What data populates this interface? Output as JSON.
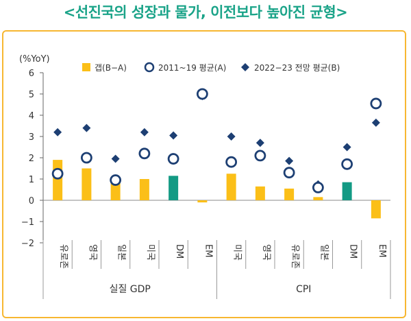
{
  "title": "<선진국의 성장과 물가, 이전보다 높아진 균형>",
  "chart_data": {
    "type": "bar",
    "ylabel": "(%YoY)",
    "ylim": [
      -2,
      6
    ],
    "yticks": [
      "6",
      "5",
      "4",
      "3",
      "2",
      "1",
      "0",
      "−1",
      "−2"
    ],
    "categories": [
      "유로존",
      "영국",
      "일본",
      "미국",
      "DM",
      "EM",
      "미국",
      "영국",
      "유로존",
      "일본",
      "DM",
      "EM"
    ],
    "groups": [
      {
        "label": "실질 GDP",
        "count": 6
      },
      {
        "label": "CPI",
        "count": 6
      }
    ],
    "legend": [
      "갭(B−A)",
      "2011~19 평균(A)",
      "2022−23 전망 평균(B)"
    ],
    "legend_position": "top",
    "series": [
      {
        "name": "갭(B−A)",
        "values": [
          1.9,
          1.5,
          1.0,
          1.0,
          1.15,
          -0.1,
          1.25,
          0.65,
          0.55,
          0.15,
          0.85,
          -0.85
        ]
      },
      {
        "name": "2011~19 평균(A)",
        "values": [
          1.25,
          2.0,
          0.95,
          2.2,
          1.95,
          5.0,
          1.8,
          2.1,
          1.3,
          0.6,
          1.7,
          4.55
        ]
      },
      {
        "name": "2022−23 전망 평균(B)",
        "values": [
          3.2,
          3.4,
          1.95,
          3.2,
          3.05,
          4.9,
          3.0,
          2.7,
          1.85,
          0.75,
          2.5,
          3.65
        ]
      }
    ],
    "colors": {
      "bar": "#fbbf18",
      "bar_highlight": "#139a84",
      "marker": "#1d3f73"
    },
    "highlight_categories": [
      4,
      10
    ]
  }
}
